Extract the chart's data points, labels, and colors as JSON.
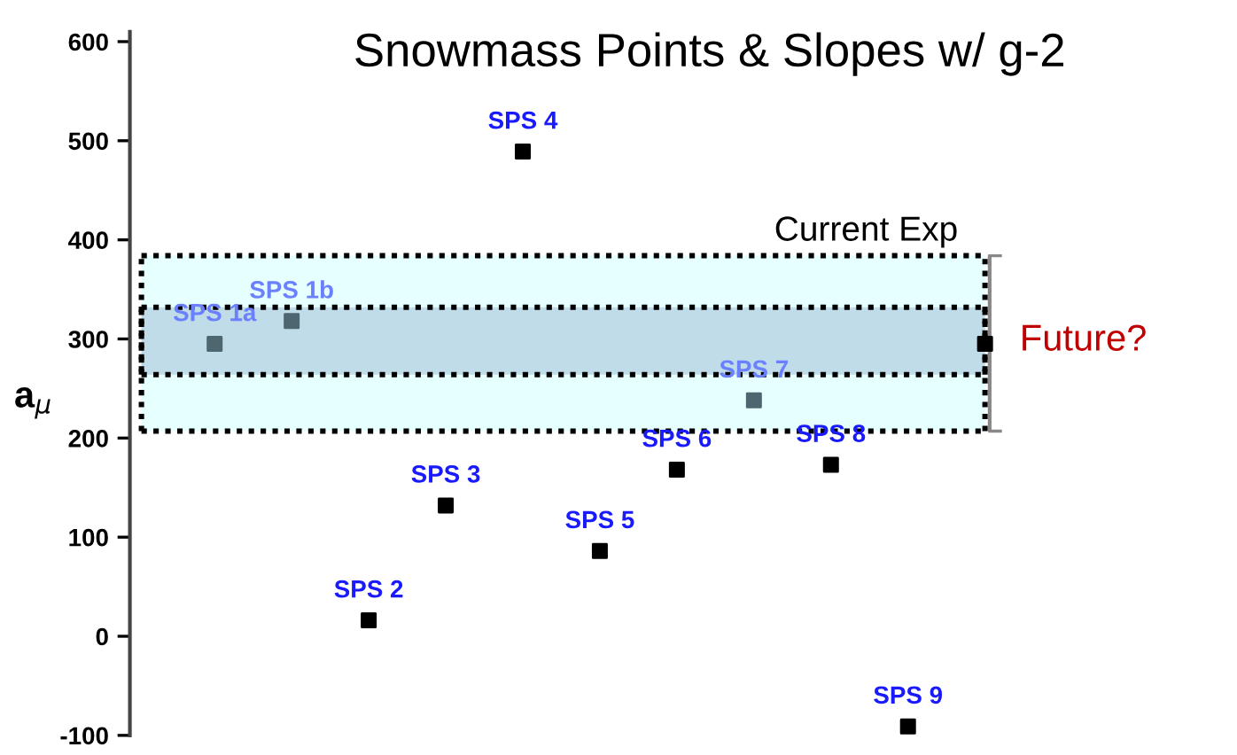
{
  "chart_data": {
    "type": "scatter",
    "title": "Snowmass Points & Slopes w/ g-2",
    "ylabel": "a$_{μ}$",
    "categories": [
      "SPS 1a",
      "SPS 1b",
      "SPS 2",
      "SPS 3",
      "SPS 4",
      "SPS 5",
      "SPS 6",
      "SPS 7",
      "SPS 8",
      "SPS 9",
      null
    ],
    "series": [
      {
        "colors": [
          "#4d6670",
          "#4d6670",
          "#000000",
          "#000000",
          "#000000",
          "#000000",
          "#000000",
          "#4d6670",
          "#000000",
          "#000000",
          null
        ],
        "values": [
          295,
          318,
          16,
          132,
          489,
          86,
          168,
          238,
          173,
          -91,
          null
        ]
      },
      {
        "color": "#000000",
        "values": [
          null,
          null,
          null,
          null,
          null,
          null,
          null,
          null,
          null,
          null,
          295
        ],
        "errors": [
          null,
          null,
          null,
          null,
          null,
          null,
          null,
          null,
          null,
          null,
          [
            207,
            384
          ]
        ]
      }
    ],
    "bands": [
      {
        "axis": "y",
        "from": 207,
        "to": 384,
        "label": "Current Exp",
        "color": "#e6ffff"
      },
      {
        "axis": "y",
        "from": 264,
        "to": 332,
        "label": "Future?",
        "color": "#c0dce8"
      }
    ],
    "ylim": [
      -100,
      610
    ],
    "yticks": [
      -100,
      0,
      100,
      200,
      300,
      400,
      500,
      600
    ],
    "marker": "square",
    "grid": false,
    "legend": false
  }
}
